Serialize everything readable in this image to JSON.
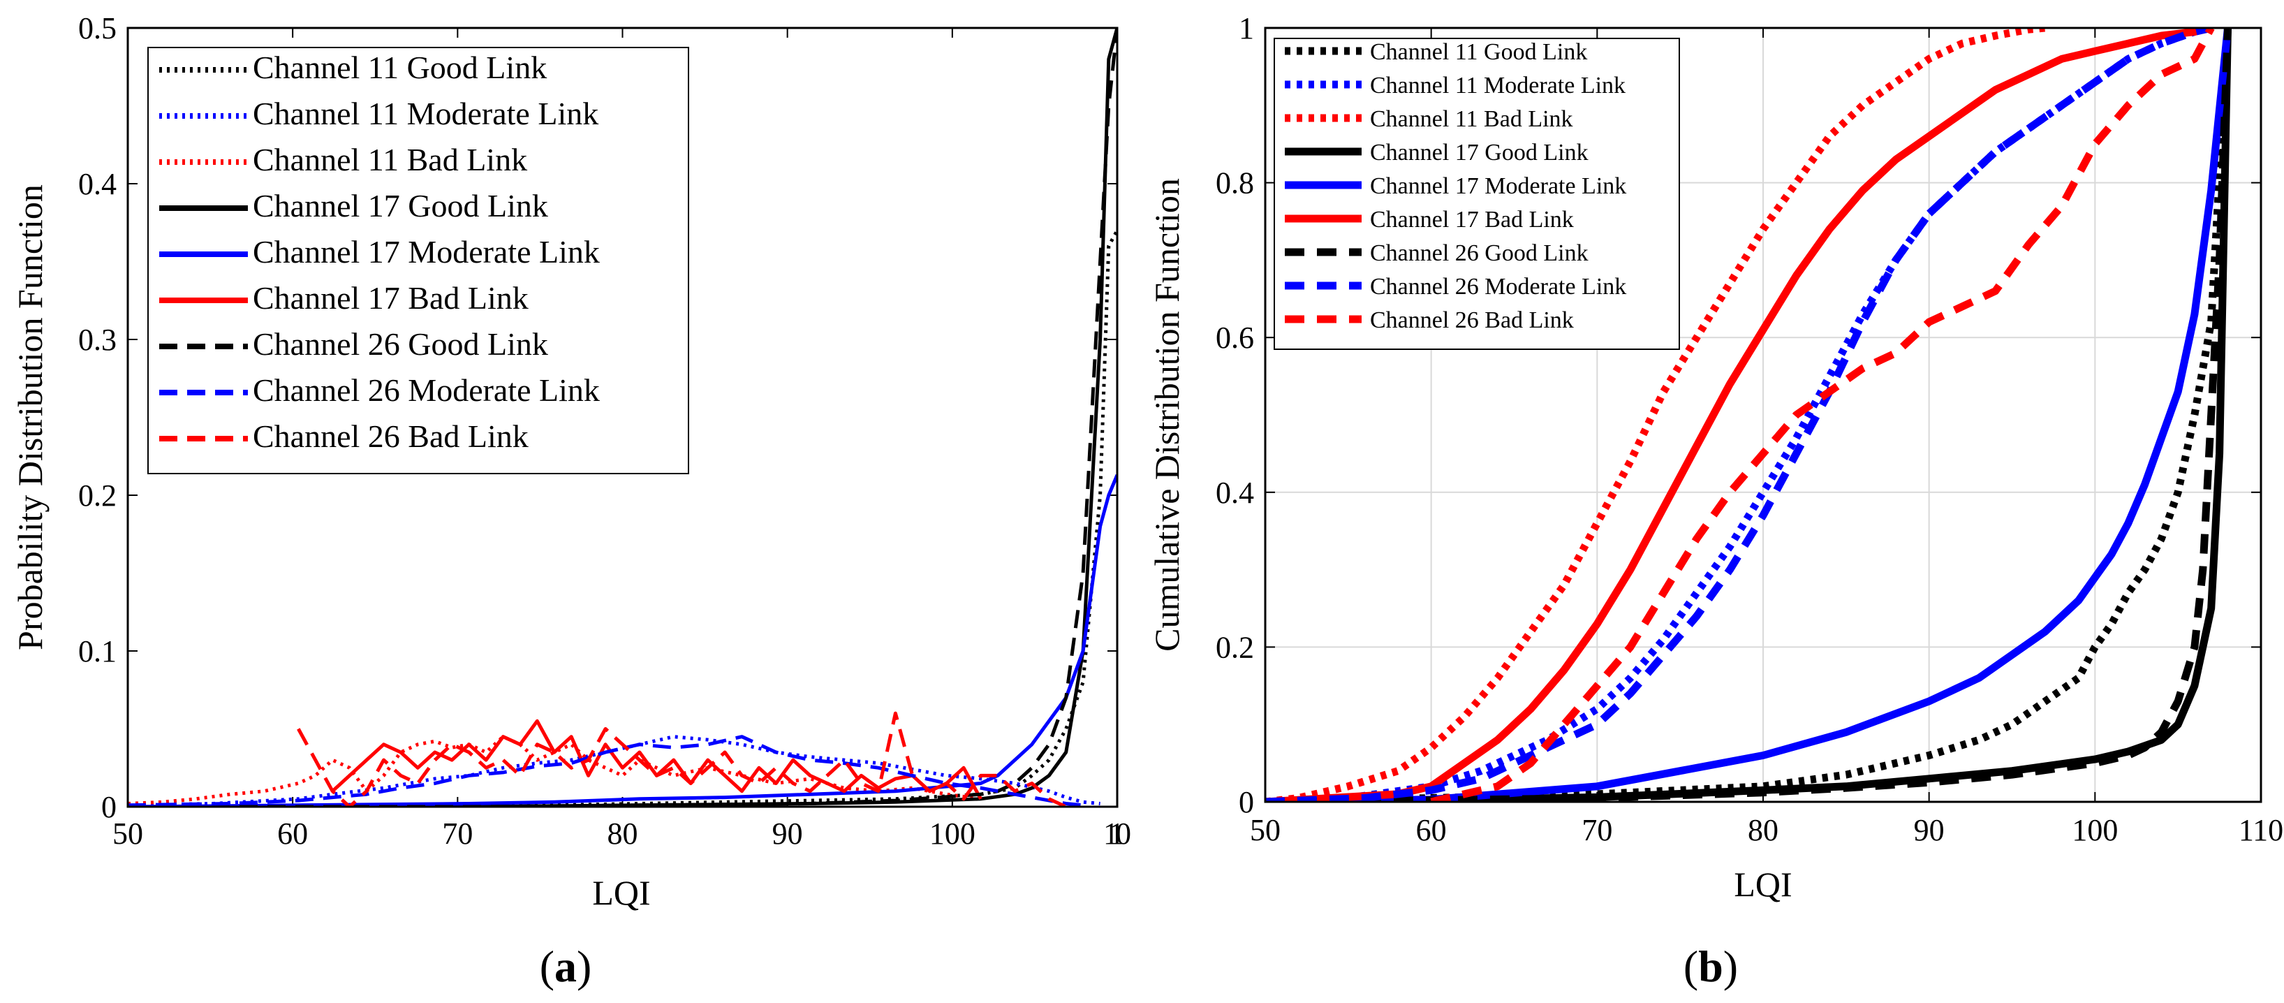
{
  "colors": {
    "black": "#000000",
    "blue": "#0000ff",
    "red": "#ff0000",
    "grid": "#d9d9d9"
  },
  "legend_entries": [
    "Channel 11 Good Link",
    "Channel 11 Moderate Link",
    "Channel 11 Bad Link",
    "Channel 17 Good Link",
    "Channel 17 Moderate Link",
    "Channel 17 Bad Link",
    "Channel 26 Good Link",
    "Channel 26 Moderate Link",
    "Channel 26 Bad Link"
  ],
  "chart_data": [
    {
      "id": "a",
      "type": "line",
      "panel_label": {
        "open": "(",
        "letter": "a",
        "close": ")"
      },
      "xlabel": "LQI",
      "ylabel": "Probability Distribution Function",
      "xlim": [
        50,
        108
      ],
      "ylim": [
        0,
        0.5
      ],
      "xticks": [
        "50",
        "60",
        "70",
        "80",
        "90",
        "100",
        "110"
      ],
      "yticks": [
        "0",
        "0.1",
        "0.2",
        "0.3",
        "0.4",
        "0.5"
      ],
      "grid": false,
      "legend": "top-left",
      "series": [
        {
          "name": "Channel 11 Good Link",
          "color": "black",
          "style": "dotted",
          "x": [
            50,
            60,
            70,
            80,
            90,
            95,
            100,
            102,
            103,
            104,
            105,
            106,
            107,
            107.5,
            108
          ],
          "y": [
            0,
            0,
            0,
            0.002,
            0.004,
            0.005,
            0.008,
            0.012,
            0.02,
            0.03,
            0.05,
            0.08,
            0.2,
            0.36,
            0.37
          ]
        },
        {
          "name": "Channel 11 Moderate Link",
          "color": "blue",
          "style": "dotted",
          "x": [
            50,
            55,
            60,
            62,
            65,
            68,
            70,
            72,
            74,
            76,
            78,
            80,
            82,
            84,
            86,
            88,
            90,
            92,
            94,
            96,
            98,
            100,
            102,
            104,
            105,
            106,
            107
          ],
          "y": [
            0.001,
            0.002,
            0.005,
            0.008,
            0.012,
            0.018,
            0.02,
            0.025,
            0.028,
            0.03,
            0.035,
            0.04,
            0.045,
            0.043,
            0.04,
            0.035,
            0.032,
            0.03,
            0.028,
            0.024,
            0.02,
            0.018,
            0.015,
            0.01,
            0.006,
            0.003,
            0.002
          ]
        },
        {
          "name": "Channel 11 Bad Link",
          "color": "red",
          "style": "dotted",
          "x": [
            50,
            52,
            54,
            56,
            58,
            60,
            61,
            62,
            63,
            64,
            65,
            66,
            67,
            68,
            69,
            70,
            71,
            72,
            73,
            74,
            75,
            76,
            77,
            78,
            79,
            80,
            81,
            82,
            84,
            86,
            88,
            90,
            92,
            94,
            96,
            98,
            100
          ],
          "y": [
            0.002,
            0.003,
            0.005,
            0.008,
            0.01,
            0.015,
            0.02,
            0.03,
            0.025,
            0.01,
            0.02,
            0.035,
            0.04,
            0.042,
            0.038,
            0.04,
            0.035,
            0.045,
            0.04,
            0.03,
            0.035,
            0.04,
            0.03,
            0.025,
            0.02,
            0.03,
            0.025,
            0.02,
            0.025,
            0.02,
            0.015,
            0.018,
            0.012,
            0.01,
            0.012,
            0.008,
            0.005
          ]
        },
        {
          "name": "Channel 17 Good Link",
          "color": "black",
          "style": "solid",
          "x": [
            50,
            60,
            70,
            80,
            90,
            95,
            100,
            102,
            103,
            104,
            105,
            106,
            107,
            107.5,
            108
          ],
          "y": [
            0,
            0,
            0,
            0.001,
            0.002,
            0.003,
            0.005,
            0.008,
            0.012,
            0.02,
            0.035,
            0.1,
            0.3,
            0.48,
            0.5
          ]
        },
        {
          "name": "Channel 17 Moderate Link",
          "color": "blue",
          "style": "solid",
          "x": [
            50,
            60,
            70,
            75,
            80,
            85,
            90,
            95,
            100,
            101,
            102,
            103,
            104,
            105,
            106,
            106.5,
            107,
            107.5,
            108
          ],
          "y": [
            0,
            0.001,
            0.002,
            0.003,
            0.005,
            0.006,
            0.008,
            0.01,
            0.015,
            0.02,
            0.03,
            0.04,
            0.055,
            0.07,
            0.1,
            0.14,
            0.18,
            0.2,
            0.213
          ]
        },
        {
          "name": "Channel 17 Bad Link",
          "color": "red",
          "style": "solid",
          "x": [
            62,
            63,
            64,
            65,
            66,
            67,
            68,
            69,
            70,
            71,
            72,
            73,
            74,
            75,
            76,
            77,
            78,
            79,
            80,
            81,
            82,
            83,
            84,
            85,
            86,
            87,
            88,
            89,
            90,
            91,
            92,
            93,
            94,
            95,
            96,
            97,
            98,
            99,
            100
          ],
          "y": [
            0.01,
            0.02,
            0.03,
            0.04,
            0.035,
            0.025,
            0.035,
            0.03,
            0.04,
            0.03,
            0.045,
            0.04,
            0.055,
            0.035,
            0.045,
            0.02,
            0.04,
            0.025,
            0.035,
            0.02,
            0.03,
            0.015,
            0.03,
            0.02,
            0.01,
            0.025,
            0.015,
            0.03,
            0.02,
            0.015,
            0.01,
            0.02,
            0.012,
            0.018,
            0.02,
            0.01,
            0.015,
            0.025,
            0.005
          ]
        },
        {
          "name": "Channel 26 Good Link",
          "color": "black",
          "style": "dashed",
          "x": [
            50,
            60,
            70,
            80,
            90,
            95,
            100,
            101,
            102,
            103,
            104,
            105,
            106,
            106.5,
            107,
            107.5,
            108
          ],
          "y": [
            0,
            0,
            0,
            0.001,
            0.002,
            0.004,
            0.008,
            0.01,
            0.015,
            0.025,
            0.04,
            0.07,
            0.15,
            0.25,
            0.35,
            0.45,
            0.5
          ]
        },
        {
          "name": "Channel 26 Moderate Link",
          "color": "blue",
          "style": "dashed",
          "x": [
            50,
            56,
            60,
            64,
            66,
            68,
            70,
            72,
            74,
            76,
            78,
            80,
            82,
            84,
            86,
            88,
            90,
            92,
            94,
            96,
            98,
            100,
            102,
            104,
            105,
            106
          ],
          "y": [
            0.001,
            0.002,
            0.004,
            0.008,
            0.012,
            0.015,
            0.02,
            0.022,
            0.026,
            0.028,
            0.035,
            0.04,
            0.038,
            0.04,
            0.045,
            0.035,
            0.03,
            0.028,
            0.025,
            0.02,
            0.015,
            0.012,
            0.008,
            0.004,
            0.002,
            0.001
          ]
        },
        {
          "name": "Channel 26 Bad Link",
          "color": "red",
          "style": "dashed",
          "x": [
            60,
            61,
            62,
            63,
            64,
            65,
            66,
            67,
            68,
            69,
            70,
            71,
            72,
            73,
            74,
            75,
            76,
            77,
            78,
            79,
            80,
            81,
            82,
            83,
            84,
            85,
            86,
            87,
            88,
            89,
            90,
            91,
            92,
            93,
            94,
            95,
            96,
            97,
            98,
            99,
            100,
            101,
            102,
            103,
            104,
            105
          ],
          "y": [
            0.05,
            0.03,
            0.01,
            0,
            0.01,
            0.03,
            0.02,
            0.015,
            0.03,
            0.04,
            0.035,
            0.025,
            0.03,
            0.02,
            0.04,
            0.035,
            0.025,
            0.03,
            0.05,
            0.04,
            0.03,
            0.02,
            0.025,
            0.015,
            0.025,
            0.035,
            0.02,
            0.015,
            0.025,
            0.015,
            0.01,
            0.02,
            0.03,
            0.015,
            0.01,
            0.06,
            0.02,
            0.01,
            0.015,
            0.005,
            0.02,
            0.02,
            0.01,
            0.015,
            0.005,
            0
          ]
        }
      ]
    },
    {
      "id": "b",
      "type": "line",
      "panel_label": {
        "open": "(",
        "letter": "b",
        "close": ")"
      },
      "xlabel": "LQI",
      "ylabel": "Cumulative Distribution Function",
      "xlim": [
        50,
        110
      ],
      "ylim": [
        0,
        1
      ],
      "xticks": [
        "50",
        "60",
        "70",
        "80",
        "90",
        "100",
        "110"
      ],
      "yticks": [
        "0",
        "0.2",
        "0.4",
        "0.6",
        "0.8",
        "1"
      ],
      "grid": true,
      "legend": "top-left",
      "series": [
        {
          "name": "Channel 11 Good Link",
          "color": "black",
          "style": "dotted",
          "x": [
            50,
            60,
            70,
            80,
            85,
            90,
            93,
            95,
            97,
            99,
            100,
            101,
            102,
            103,
            104,
            105,
            106,
            107,
            108
          ],
          "y": [
            0,
            0.005,
            0.01,
            0.02,
            0.035,
            0.06,
            0.08,
            0.1,
            0.13,
            0.16,
            0.2,
            0.23,
            0.27,
            0.3,
            0.34,
            0.4,
            0.5,
            0.62,
            1.0
          ]
        },
        {
          "name": "Channel 11 Moderate Link",
          "color": "blue",
          "style": "dotted",
          "x": [
            50,
            55,
            60,
            63,
            65,
            67,
            70,
            72,
            74,
            76,
            78,
            80,
            82,
            84,
            86,
            88,
            90,
            92,
            94,
            96,
            98,
            100,
            102,
            104,
            106,
            107
          ],
          "y": [
            0,
            0.005,
            0.02,
            0.04,
            0.06,
            0.08,
            0.12,
            0.16,
            0.21,
            0.27,
            0.33,
            0.4,
            0.47,
            0.55,
            0.63,
            0.7,
            0.76,
            0.8,
            0.84,
            0.87,
            0.9,
            0.93,
            0.96,
            0.98,
            0.995,
            1.0
          ]
        },
        {
          "name": "Channel 11 Bad Link",
          "color": "red",
          "style": "dotted",
          "x": [
            50,
            52,
            55,
            58,
            60,
            62,
            64,
            66,
            68,
            70,
            72,
            74,
            76,
            78,
            80,
            82,
            84,
            86,
            88,
            90,
            92,
            94,
            96,
            97
          ],
          "y": [
            0,
            0.005,
            0.02,
            0.04,
            0.07,
            0.11,
            0.16,
            0.22,
            0.28,
            0.36,
            0.44,
            0.53,
            0.6,
            0.67,
            0.74,
            0.8,
            0.86,
            0.9,
            0.93,
            0.96,
            0.98,
            0.99,
            0.998,
            1.0
          ]
        },
        {
          "name": "Channel 17 Good Link",
          "color": "black",
          "style": "solid",
          "x": [
            50,
            60,
            70,
            80,
            85,
            90,
            95,
            100,
            102,
            104,
            105,
            106,
            107,
            107.5,
            108
          ],
          "y": [
            0,
            0.002,
            0.006,
            0.015,
            0.02,
            0.03,
            0.04,
            0.055,
            0.065,
            0.08,
            0.1,
            0.15,
            0.25,
            0.45,
            1.0
          ]
        },
        {
          "name": "Channel 17 Moderate Link",
          "color": "blue",
          "style": "solid",
          "x": [
            50,
            60,
            70,
            75,
            80,
            85,
            90,
            93,
            95,
            97,
            99,
            100,
            101,
            102,
            103,
            104,
            105,
            106,
            107,
            108
          ],
          "y": [
            0,
            0.003,
            0.02,
            0.04,
            0.06,
            0.09,
            0.13,
            0.16,
            0.19,
            0.22,
            0.26,
            0.29,
            0.32,
            0.36,
            0.41,
            0.47,
            0.53,
            0.63,
            0.79,
            1.0
          ]
        },
        {
          "name": "Channel 17 Bad Link",
          "color": "red",
          "style": "solid",
          "x": [
            50,
            58,
            60,
            62,
            64,
            66,
            68,
            70,
            72,
            74,
            76,
            78,
            80,
            82,
            84,
            86,
            88,
            90,
            92,
            94,
            96,
            98,
            100,
            102,
            104,
            106,
            107
          ],
          "y": [
            0,
            0.01,
            0.02,
            0.05,
            0.08,
            0.12,
            0.17,
            0.23,
            0.3,
            0.38,
            0.46,
            0.54,
            0.61,
            0.68,
            0.74,
            0.79,
            0.83,
            0.86,
            0.89,
            0.92,
            0.94,
            0.96,
            0.97,
            0.98,
            0.99,
            0.995,
            1.0
          ]
        },
        {
          "name": "Channel 26 Good Link",
          "color": "black",
          "style": "dashed",
          "x": [
            50,
            60,
            70,
            80,
            85,
            90,
            95,
            100,
            102,
            103,
            104,
            105,
            106,
            106.5,
            107,
            107.5,
            108
          ],
          "y": [
            0,
            0.002,
            0.005,
            0.012,
            0.018,
            0.025,
            0.035,
            0.05,
            0.06,
            0.07,
            0.09,
            0.13,
            0.2,
            0.3,
            0.5,
            0.7,
            1.0
          ]
        },
        {
          "name": "Channel 26 Moderate Link",
          "color": "blue",
          "style": "dashed",
          "x": [
            50,
            56,
            60,
            63,
            65,
            67,
            70,
            72,
            74,
            76,
            78,
            80,
            82,
            84,
            86,
            88,
            90,
            92,
            94,
            96,
            98,
            100,
            102,
            104,
            106,
            107
          ],
          "y": [
            0,
            0.005,
            0.015,
            0.03,
            0.05,
            0.07,
            0.1,
            0.14,
            0.19,
            0.24,
            0.3,
            0.37,
            0.45,
            0.53,
            0.62,
            0.7,
            0.76,
            0.8,
            0.84,
            0.87,
            0.9,
            0.93,
            0.96,
            0.98,
            0.995,
            1.0
          ]
        },
        {
          "name": "Channel 26 Bad Link",
          "color": "red",
          "style": "dashed",
          "x": [
            60,
            64,
            66,
            68,
            70,
            72,
            74,
            76,
            78,
            80,
            82,
            84,
            86,
            88,
            90,
            92,
            94,
            96,
            98,
            100,
            102,
            104,
            106,
            107
          ],
          "y": [
            0,
            0.02,
            0.05,
            0.1,
            0.15,
            0.2,
            0.27,
            0.34,
            0.4,
            0.45,
            0.5,
            0.53,
            0.56,
            0.58,
            0.62,
            0.64,
            0.66,
            0.72,
            0.77,
            0.85,
            0.9,
            0.94,
            0.96,
            1.0
          ]
        }
      ]
    }
  ]
}
